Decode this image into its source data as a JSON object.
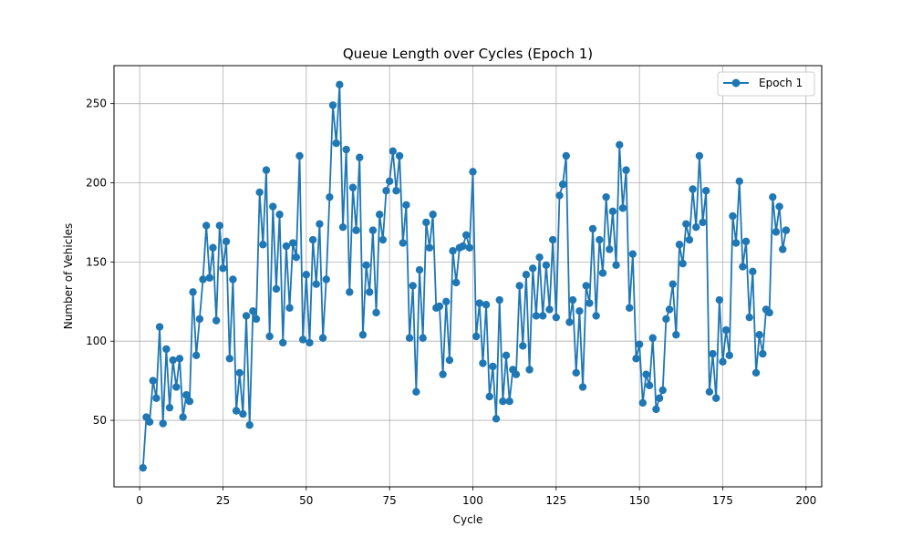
{
  "chart_data": {
    "type": "line",
    "title": "Queue Length over Cycles (Epoch 1)",
    "xlabel": "Cycle",
    "ylabel": "Number of Vehicles",
    "xlim": [
      -7.7,
      204.7
    ],
    "ylim": [
      8.0,
      274.0
    ],
    "xticks": [
      0,
      25,
      50,
      75,
      100,
      125,
      150,
      175,
      200
    ],
    "yticks": [
      50,
      100,
      150,
      200,
      250
    ],
    "grid": true,
    "legend_position": "top-right",
    "series": [
      {
        "name": "Epoch 1",
        "color": "#1f77b4",
        "marker": "circle",
        "x": [
          1,
          2,
          3,
          4,
          5,
          6,
          7,
          8,
          9,
          10,
          11,
          12,
          13,
          14,
          15,
          16,
          17,
          18,
          19,
          20,
          21,
          22,
          23,
          24,
          25,
          26,
          27,
          28,
          29,
          30,
          31,
          32,
          33,
          34,
          35,
          36,
          37,
          38,
          39,
          40,
          41,
          42,
          43,
          44,
          45,
          46,
          47,
          48,
          49,
          50,
          51,
          52,
          53,
          54,
          55,
          56,
          57,
          58,
          59,
          60,
          61,
          62,
          63,
          64,
          65,
          66,
          67,
          68,
          69,
          70,
          71,
          72,
          73,
          74,
          75,
          76,
          77,
          78,
          79,
          80,
          81,
          82,
          83,
          84,
          85,
          86,
          87,
          88,
          89,
          90,
          91,
          92,
          93,
          94,
          95,
          96,
          97,
          98,
          99,
          100,
          101,
          102,
          103,
          104,
          105,
          106,
          107,
          108,
          109,
          110,
          111,
          112,
          113,
          114,
          115,
          116,
          117,
          118,
          119,
          120,
          121,
          122,
          123,
          124,
          125,
          126,
          127,
          128,
          129,
          130,
          131,
          132,
          133,
          134,
          135,
          136,
          137,
          138,
          139,
          140,
          141,
          142,
          143,
          144,
          145,
          146,
          147,
          148,
          149,
          150,
          151,
          152,
          153,
          154,
          155,
          156,
          157,
          158,
          159,
          160,
          161,
          162,
          163,
          164,
          165,
          166,
          167,
          168,
          169,
          170,
          171,
          172,
          173,
          174,
          175,
          176,
          177,
          178,
          179,
          180,
          181,
          182,
          183,
          184,
          185,
          186,
          187,
          188,
          189,
          190,
          191,
          192,
          193,
          194
        ],
        "y": [
          20,
          52,
          49,
          75,
          64,
          109,
          48,
          95,
          58,
          88,
          71,
          89,
          52,
          66,
          62,
          131,
          91,
          114,
          139,
          173,
          140,
          159,
          113,
          173,
          146,
          163,
          89,
          139,
          56,
          80,
          54,
          116,
          47,
          119,
          114,
          194,
          161,
          208,
          103,
          185,
          133,
          180,
          99,
          160,
          121,
          162,
          153,
          217,
          101,
          142,
          99,
          164,
          136,
          174,
          102,
          139,
          191,
          249,
          225,
          262,
          172,
          221,
          131,
          197,
          170,
          216,
          104,
          148,
          131,
          170,
          118,
          180,
          164,
          195,
          201,
          220,
          195,
          217,
          162,
          186,
          102,
          135,
          68,
          145,
          102,
          175,
          159,
          180,
          121,
          122,
          79,
          125,
          88,
          157,
          137,
          159,
          160,
          167,
          159,
          207,
          103,
          124,
          86,
          123,
          65,
          84,
          51,
          126,
          62,
          91,
          62,
          82,
          79,
          135,
          97,
          142,
          82,
          146,
          116,
          153,
          116,
          148,
          120,
          164,
          115,
          192,
          199,
          217,
          112,
          126,
          80,
          119,
          71,
          135,
          124,
          171,
          116,
          164,
          143,
          191,
          158,
          182,
          148,
          224,
          184,
          208,
          121,
          155,
          89,
          98,
          61,
          79,
          72,
          102,
          57,
          64,
          69,
          114,
          120,
          136,
          104,
          161,
          149,
          174,
          164,
          196,
          172,
          217,
          175,
          195,
          68,
          92,
          64,
          126,
          87,
          107,
          91,
          179,
          162,
          201,
          147,
          163,
          115,
          144,
          80,
          104,
          92,
          120,
          118,
          191,
          169,
          185,
          158,
          170
        ]
      }
    ]
  }
}
